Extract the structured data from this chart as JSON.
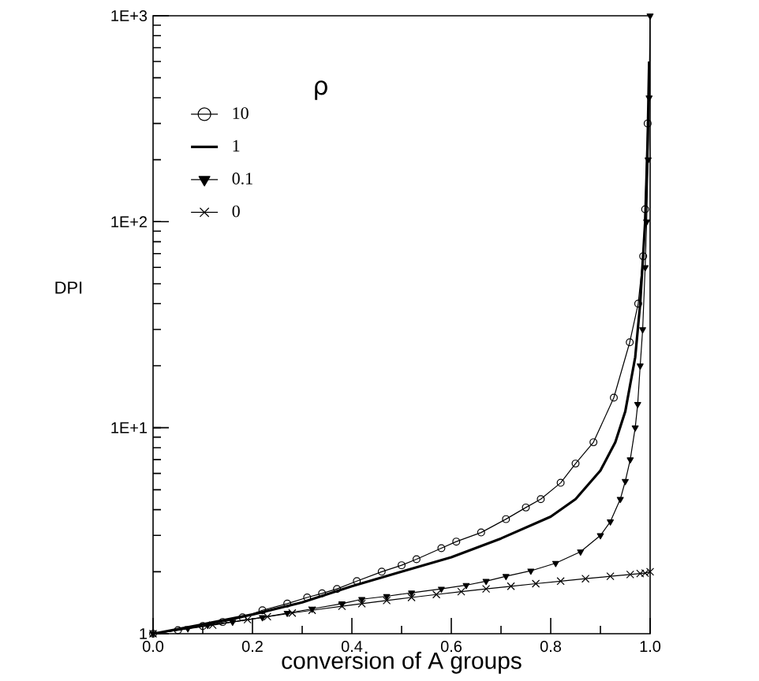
{
  "chart_data": {
    "type": "line",
    "xlabel": "conversion of A groups",
    "ylabel": "DPI",
    "legend_title": "ρ",
    "legend": "top left",
    "log": "y",
    "grid": false,
    "xlim": [
      0,
      1
    ],
    "ylim": [
      1,
      1000
    ],
    "xticks": [
      {
        "value": 0,
        "label": "0.0"
      },
      0.2,
      0.4,
      0.6,
      0.8,
      {
        "value": 1,
        "label": "1.0"
      }
    ],
    "yticks": [
      1,
      {
        "value": 10,
        "label": "1E+1"
      },
      {
        "value": 100,
        "label": "1E+2"
      },
      {
        "value": 1000,
        "label": "1E+3"
      }
    ],
    "series": [
      {
        "name": "10",
        "color": "#000000",
        "marker": "circle",
        "x": [
          0,
          0.05,
          0.1,
          0.14,
          0.18,
          0.22,
          0.27,
          0.31,
          0.34,
          0.37,
          0.41,
          0.46,
          0.5,
          0.53,
          0.58,
          0.61,
          0.66,
          0.71,
          0.75,
          0.78,
          0.82,
          0.85,
          0.886,
          0.927,
          0.959,
          0.976,
          0.986,
          0.99,
          0.995
        ],
        "values": [
          1,
          1.04,
          1.09,
          1.14,
          1.2,
          1.3,
          1.4,
          1.5,
          1.57,
          1.65,
          1.8,
          2.0,
          2.15,
          2.3,
          2.6,
          2.8,
          3.1,
          3.6,
          4.1,
          4.5,
          5.4,
          6.7,
          8.5,
          14,
          26,
          40,
          68,
          115,
          300
        ]
      },
      {
        "name": "1",
        "color": "#000000",
        "marker": "none",
        "x": [
          0,
          0.1,
          0.2,
          0.3,
          0.4,
          0.5,
          0.6,
          0.7,
          0.8,
          0.85,
          0.9,
          0.93,
          0.95,
          0.97,
          0.98,
          0.99,
          0.995,
          0.998
        ],
        "values": [
          1,
          1.11,
          1.24,
          1.42,
          1.7,
          2.0,
          2.35,
          2.9,
          3.7,
          4.5,
          6.2,
          8.5,
          12,
          22,
          40,
          100,
          250,
          600
        ]
      },
      {
        "name": "0.1",
        "color": "#000000",
        "marker": "triangle",
        "x": [
          0,
          0.07,
          0.11,
          0.16,
          0.22,
          0.27,
          0.32,
          0.38,
          0.42,
          0.47,
          0.52,
          0.58,
          0.63,
          0.67,
          0.71,
          0.76,
          0.81,
          0.86,
          0.9,
          0.92,
          0.94,
          0.95,
          0.96,
          0.97,
          0.975,
          0.98,
          0.985,
          0.99,
          0.993,
          0.996,
          0.998,
          1.0
        ],
        "values": [
          1,
          1.06,
          1.1,
          1.14,
          1.2,
          1.26,
          1.32,
          1.4,
          1.47,
          1.52,
          1.58,
          1.65,
          1.72,
          1.8,
          1.9,
          2.02,
          2.2,
          2.5,
          3.0,
          3.5,
          4.5,
          5.5,
          7,
          10,
          13,
          20,
          30,
          60,
          100,
          200,
          400,
          1000
        ]
      },
      {
        "name": "0",
        "color": "#000000",
        "marker": "cross",
        "x": [
          0,
          0.12,
          0.19,
          0.23,
          0.28,
          0.32,
          0.38,
          0.42,
          0.47,
          0.52,
          0.57,
          0.62,
          0.67,
          0.72,
          0.77,
          0.82,
          0.87,
          0.92,
          0.96,
          0.98,
          0.99,
          1.0
        ],
        "values": [
          1,
          1.1,
          1.17,
          1.21,
          1.26,
          1.3,
          1.36,
          1.4,
          1.45,
          1.5,
          1.55,
          1.6,
          1.65,
          1.7,
          1.75,
          1.8,
          1.85,
          1.9,
          1.94,
          1.96,
          1.97,
          2.0
        ]
      }
    ]
  }
}
